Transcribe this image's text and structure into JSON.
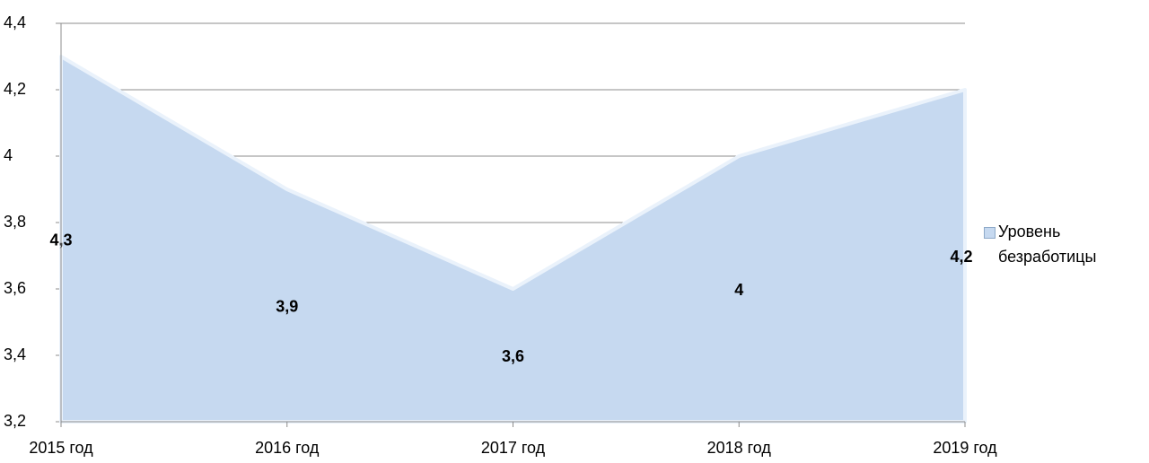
{
  "chart_data": {
    "type": "area",
    "categories": [
      "2015 год",
      "2016 год",
      "2017 год",
      "2018 год",
      "2019 год"
    ],
    "series": [
      {
        "name": "Уровень безработицы",
        "color": "#c6d9f0",
        "values": [
          4.3,
          3.9,
          3.6,
          4,
          4.2
        ],
        "value_labels": [
          "4,3",
          "3,9",
          "3,6",
          "4",
          "4,2"
        ]
      }
    ],
    "ylim": [
      3.2,
      4.4
    ],
    "yticks": [
      {
        "value": 3.2,
        "label": "3,2"
      },
      {
        "value": 3.4,
        "label": "3,4"
      },
      {
        "value": 3.6,
        "label": "3,6"
      },
      {
        "value": 3.8,
        "label": "3,8"
      },
      4,
      {
        "value": 4.2,
        "label": "4,2"
      },
      {
        "value": 4.4,
        "label": "4,4"
      }
    ],
    "grid": true,
    "legend": "right"
  }
}
